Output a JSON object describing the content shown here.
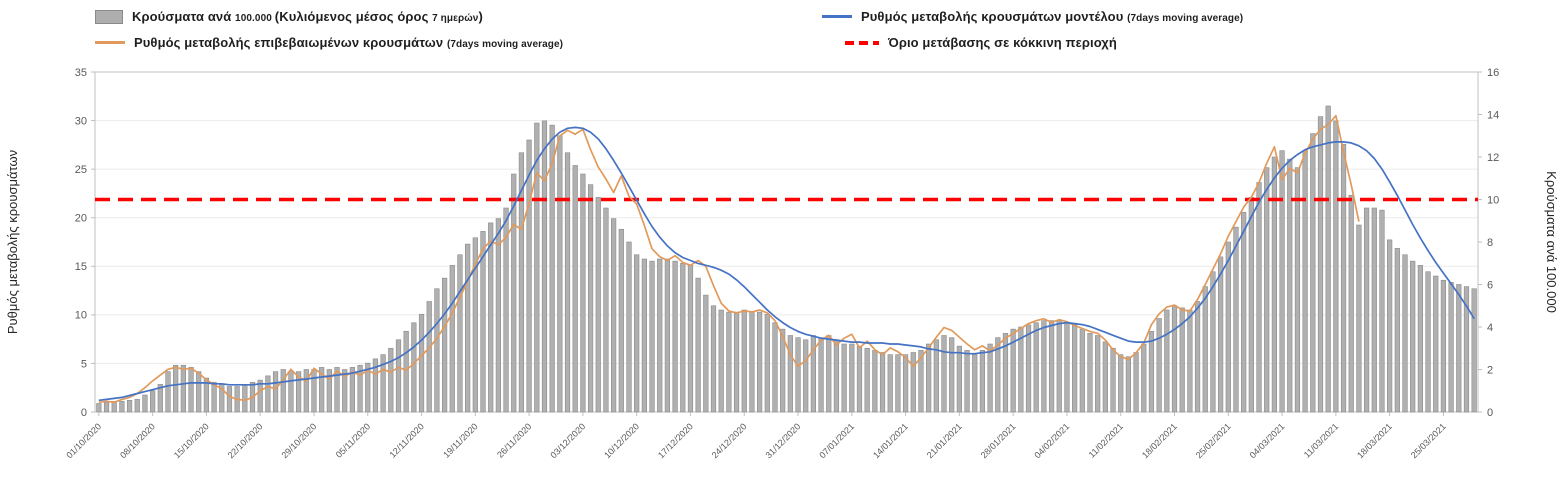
{
  "legend": {
    "items": [
      {
        "id": "cases",
        "row": 1,
        "swatch": "bar",
        "color": "#aeaeae",
        "border": "#8a8a8a",
        "segments": [
          {
            "text": "Κρούσματα ανά ",
            "small": false
          },
          {
            "text": "100.000 ",
            "small": true
          },
          {
            "text": "(Κυλιόμενος μέσος όρος ",
            "small": false
          },
          {
            "text": "7 ημερών",
            "small": true
          },
          {
            "text": ")",
            "small": false
          }
        ]
      },
      {
        "id": "model",
        "row": 1,
        "swatch": "line",
        "color": "#4472C4",
        "segments": [
          {
            "text": "Ρυθμός μεταβολής κρουσμάτων μοντέλου ",
            "small": false
          },
          {
            "text": "(7days moving average)",
            "small": true
          }
        ]
      },
      {
        "id": "confirmed",
        "row": 2,
        "swatch": "line",
        "color": "#E19A5C",
        "segments": [
          {
            "text": "Ρυθμός μεταβολής επιβεβαιωμένων κρουσμάτων ",
            "small": false
          },
          {
            "text": "(7days moving average)",
            "small": true
          }
        ]
      },
      {
        "id": "threshold",
        "row": 2,
        "swatch": "dashed",
        "color": "#FF0000",
        "segments": [
          {
            "text": "Όριο μετάβασης σε κόκκινη περιοχή",
            "small": false
          }
        ]
      }
    ]
  },
  "chart_data": {
    "type": "combo",
    "title": "",
    "x_unit": "daily, starting 01/10/2020",
    "x_tick_interval_days": 7,
    "x_tick_labels": [
      "01/10/2020",
      "08/10/2020",
      "15/10/2020",
      "22/10/2020",
      "29/10/2020",
      "05/11/2020",
      "12/11/2020",
      "19/11/2020",
      "26/11/2020",
      "03/12/2020",
      "10/12/2020",
      "17/12/2020",
      "24/12/2020",
      "31/12/2020",
      "07/01/2021",
      "14/01/2021",
      "21/01/2021",
      "28/01/2021",
      "04/02/2021",
      "11/02/2021",
      "18/02/2021",
      "25/02/2021",
      "04/03/2021",
      "11/03/2021",
      "18/03/2021",
      "25/03/2021"
    ],
    "left_axis": {
      "label": "Ρυθμός μεταβολής κρουσμάτων",
      "min": 0,
      "max": 35,
      "step": 5
    },
    "right_axis": {
      "label": "Κρούσματα ανά 100.000",
      "min": 0,
      "max": 16,
      "step": 2
    },
    "grid": true,
    "legend_position": "top",
    "series": [
      {
        "id": "cases",
        "name": "Κρούσματα ανά 100.000 (Κυλιόμενος μέσος όρος 7 ημερών)",
        "type": "bar",
        "axis": "right",
        "color": "#b0b0b0",
        "border": "#8a8a8a",
        "values": [
          0.4,
          0.45,
          0.5,
          0.5,
          0.55,
          0.6,
          0.8,
          1.0,
          1.3,
          1.9,
          2.2,
          2.2,
          2.1,
          1.9,
          1.6,
          1.4,
          1.3,
          1.2,
          1.2,
          1.3,
          1.4,
          1.5,
          1.7,
          1.9,
          2.0,
          1.9,
          1.9,
          2.0,
          2.0,
          2.1,
          2.0,
          2.1,
          2.0,
          2.1,
          2.2,
          2.3,
          2.5,
          2.7,
          3.0,
          3.4,
          3.8,
          4.2,
          4.6,
          5.2,
          5.8,
          6.3,
          6.9,
          7.4,
          7.9,
          8.2,
          8.5,
          8.9,
          9.1,
          9.6,
          11.2,
          12.2,
          12.8,
          13.6,
          13.7,
          13.5,
          13.0,
          12.2,
          11.6,
          11.2,
          10.7,
          10.1,
          9.6,
          9.1,
          8.6,
          8.0,
          7.4,
          7.2,
          7.1,
          7.2,
          7.2,
          7.1,
          7.0,
          6.9,
          6.3,
          5.5,
          5.0,
          4.8,
          4.7,
          4.7,
          4.8,
          4.7,
          4.7,
          4.6,
          4.2,
          3.9,
          3.6,
          3.5,
          3.4,
          3.6,
          3.5,
          3.6,
          3.4,
          3.2,
          3.2,
          3.1,
          3.0,
          2.9,
          2.8,
          2.7,
          2.7,
          2.7,
          2.8,
          2.9,
          3.2,
          3.4,
          3.6,
          3.5,
          3.1,
          2.9,
          2.7,
          2.9,
          3.2,
          3.5,
          3.7,
          3.9,
          4.0,
          4.1,
          4.2,
          4.3,
          4.3,
          4.3,
          4.2,
          4.1,
          3.9,
          3.7,
          3.6,
          3.3,
          3.0,
          2.7,
          2.6,
          2.8,
          3.2,
          3.8,
          4.4,
          4.8,
          5.0,
          4.9,
          4.8,
          5.2,
          5.9,
          6.6,
          7.3,
          8.0,
          8.7,
          9.4,
          10.1,
          10.8,
          11.5,
          12.0,
          12.3,
          11.9,
          11.5,
          12.3,
          13.1,
          13.9,
          14.4,
          13.7,
          12.6,
          10.2,
          8.8,
          9.6,
          9.6,
          9.5,
          8.1,
          7.7,
          7.4,
          7.1,
          6.9,
          6.6,
          6.4,
          6.2,
          6.1,
          6.0,
          5.9,
          5.8
        ]
      },
      {
        "id": "confirmed",
        "name": "Ρυθμός μεταβολής επιβεβαιωμένων κρουσμάτων (7days moving average)",
        "type": "line",
        "axis": "left",
        "color": "#E19A5C",
        "values": [
          1.0,
          1.1,
          1.0,
          1.3,
          1.5,
          1.9,
          2.5,
          3.2,
          3.8,
          4.4,
          4.6,
          4.4,
          4.5,
          4.0,
          3.3,
          2.8,
          2.4,
          1.6,
          1.3,
          1.2,
          1.5,
          2.2,
          2.6,
          2.4,
          3.3,
          4.4,
          3.6,
          3.2,
          4.5,
          3.9,
          3.4,
          4.2,
          3.7,
          4.1,
          3.8,
          4.3,
          3.9,
          4.4,
          4.1,
          4.6,
          4.3,
          5.0,
          5.8,
          6.6,
          7.6,
          8.8,
          10.2,
          11.8,
          13.5,
          15.2,
          16.8,
          17.6,
          17.2,
          18.0,
          19.3,
          18.8,
          21.5,
          24.6,
          23.8,
          25.6,
          28.4,
          29.0,
          28.6,
          29.1,
          27.0,
          25.2,
          24.0,
          22.6,
          24.3,
          22.2,
          21.4,
          19.2,
          16.8,
          16.0,
          15.6,
          16.1,
          15.4,
          15.1,
          15.6,
          15.0,
          13.0,
          11.2,
          10.4,
          10.2,
          10.4,
          10.3,
          10.5,
          10.2,
          9.4,
          7.8,
          5.9,
          4.7,
          5.3,
          6.4,
          7.4,
          7.9,
          6.9,
          7.6,
          8.0,
          6.6,
          7.3,
          6.4,
          5.9,
          6.6,
          6.2,
          5.6,
          4.7,
          5.6,
          6.6,
          7.7,
          8.7,
          8.4,
          7.7,
          7.0,
          6.4,
          6.8,
          6.3,
          6.9,
          7.6,
          8.1,
          8.6,
          9.1,
          9.4,
          9.6,
          9.2,
          9.5,
          9.3,
          8.9,
          8.6,
          8.3,
          8.1,
          7.4,
          6.4,
          5.7,
          5.4,
          6.1,
          7.1,
          9.0,
          10.1,
          10.8,
          11.0,
          10.5,
          10.4,
          11.6,
          13.1,
          14.7,
          16.3,
          18.1,
          19.6,
          21.1,
          22.1,
          23.6,
          25.6,
          27.3,
          23.9,
          25.1,
          24.6,
          26.6,
          28.1,
          29.1,
          29.6,
          30.5,
          26.8,
          23.4,
          19.6
        ]
      },
      {
        "id": "model",
        "name": "Ρυθμός μεταβολής κρουσμάτων μοντέλου (7days moving average)",
        "type": "line",
        "axis": "left",
        "color": "#4472C4",
        "values": [
          1.2,
          1.3,
          1.4,
          1.5,
          1.7,
          1.9,
          2.1,
          2.3,
          2.5,
          2.7,
          2.8,
          2.9,
          3.0,
          3.0,
          3.0,
          2.9,
          2.9,
          2.8,
          2.8,
          2.8,
          2.8,
          2.9,
          2.9,
          3.0,
          3.1,
          3.2,
          3.3,
          3.4,
          3.5,
          3.6,
          3.7,
          3.8,
          3.9,
          4.0,
          4.2,
          4.4,
          4.6,
          4.9,
          5.2,
          5.6,
          6.1,
          6.7,
          7.4,
          8.2,
          9.1,
          10.1,
          11.2,
          12.4,
          13.6,
          14.8,
          16.0,
          17.2,
          18.4,
          19.7,
          21.2,
          22.8,
          24.4,
          25.9,
          27.1,
          28.1,
          28.8,
          29.2,
          29.3,
          29.2,
          28.8,
          28.1,
          27.1,
          25.9,
          24.6,
          23.2,
          21.8,
          20.4,
          19.1,
          18.0,
          17.1,
          16.4,
          15.9,
          15.6,
          15.3,
          15.1,
          14.9,
          14.6,
          14.2,
          13.6,
          12.9,
          12.1,
          11.3,
          10.5,
          9.8,
          9.2,
          8.7,
          8.3,
          8.0,
          7.8,
          7.6,
          7.5,
          7.4,
          7.3,
          7.2,
          7.2,
          7.1,
          7.1,
          7.1,
          7.0,
          7.0,
          6.9,
          6.8,
          6.7,
          6.5,
          6.4,
          6.2,
          6.1,
          6.1,
          6.0,
          6.0,
          6.1,
          6.2,
          6.5,
          6.8,
          7.2,
          7.6,
          8.0,
          8.4,
          8.7,
          8.9,
          9.1,
          9.2,
          9.1,
          9.0,
          8.8,
          8.5,
          8.2,
          7.9,
          7.6,
          7.3,
          7.2,
          7.2,
          7.3,
          7.6,
          8.0,
          8.5,
          9.1,
          9.8,
          10.7,
          11.7,
          12.9,
          14.2,
          15.6,
          17.1,
          18.6,
          20.1,
          21.6,
          22.9,
          24.1,
          25.1,
          25.9,
          26.5,
          27.0,
          27.3,
          27.5,
          27.7,
          27.8,
          27.8,
          27.7,
          27.4,
          26.9,
          26.1,
          25.0,
          23.7,
          22.3,
          20.8,
          19.3,
          17.9,
          16.6,
          15.4,
          14.3,
          13.2,
          12.1,
          10.9,
          9.6
        ]
      },
      {
        "id": "threshold",
        "name": "Όριο μετάβασης σε κόκκινη περιοχή",
        "type": "threshold",
        "axis": "right",
        "color": "#FF0000",
        "value": 10
      }
    ]
  }
}
